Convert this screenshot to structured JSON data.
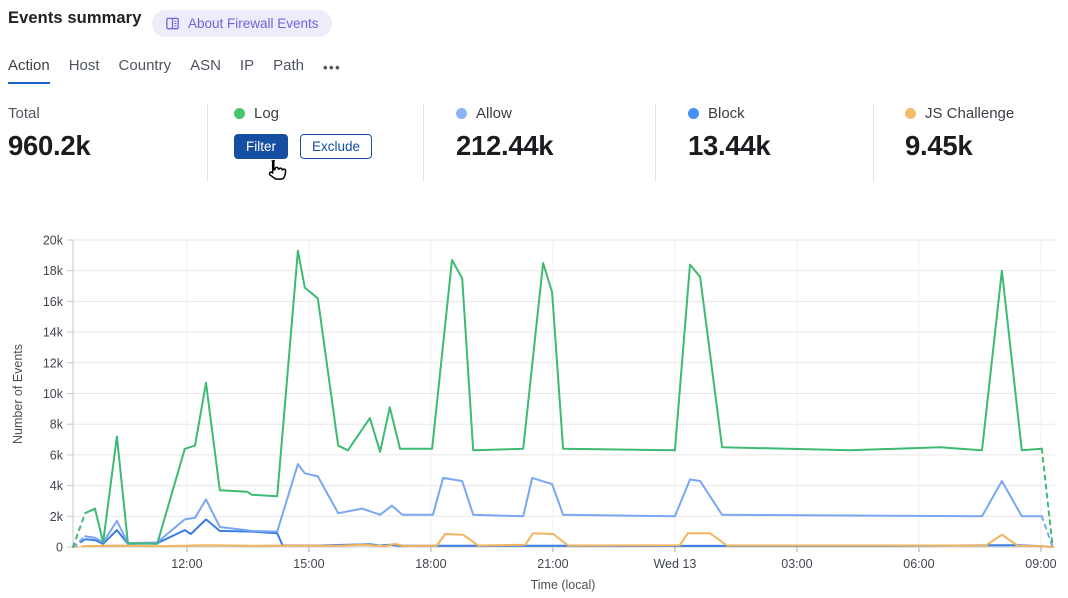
{
  "header": {
    "title": "Events summary",
    "badge": {
      "label": "About Firewall Events",
      "color": "#7064d8",
      "bg": "#edecfa"
    }
  },
  "tabs": {
    "items": [
      {
        "label": "Action",
        "active": true
      },
      {
        "label": "Host"
      },
      {
        "label": "Country"
      },
      {
        "label": "ASN"
      },
      {
        "label": "IP"
      },
      {
        "label": "Path"
      }
    ],
    "more": "•••"
  },
  "stats": {
    "total": {
      "label": "Total",
      "value": "960.2k"
    },
    "log": {
      "label": "Log",
      "dot_color": "#46c56e",
      "filter_label": "Filter",
      "exclude_label": "Exclude"
    },
    "allow": {
      "label": "Allow",
      "value": "212.44k",
      "dot_color": "#8bb4f7"
    },
    "block": {
      "label": "Block",
      "value": "13.44k",
      "dot_color": "#4a90f4"
    },
    "js_challenge": {
      "label": "JS Challenge",
      "value": "9.45k",
      "dot_color": "#f5bc6c"
    }
  },
  "accent_colors": {
    "button_blue": "#164fa2",
    "active_tab_underline": "#1d5fc2"
  },
  "chart_data": {
    "type": "line",
    "title": "",
    "xlabel": "Time (local)",
    "ylabel": "Number of Events",
    "ylim_k": [
      0,
      20
    ],
    "grid": true,
    "x_unit": "hours from chart start (~09:10 local), 15-min sampling",
    "y_ticks": [
      {
        "v": 0,
        "label": "0"
      },
      {
        "v": 2,
        "label": "2k"
      },
      {
        "v": 4,
        "label": "4k"
      },
      {
        "v": 6,
        "label": "6k"
      },
      {
        "v": 8,
        "label": "8k"
      },
      {
        "v": 10,
        "label": "10k"
      },
      {
        "v": 12,
        "label": "12k"
      },
      {
        "v": 14,
        "label": "14k"
      },
      {
        "v": 16,
        "label": "16k"
      },
      {
        "v": 18,
        "label": "18k"
      },
      {
        "v": 20,
        "label": "20k"
      }
    ],
    "x_ticks": [
      {
        "t": 2.8,
        "label": "12:00"
      },
      {
        "t": 5.8,
        "label": "15:00"
      },
      {
        "t": 8.8,
        "label": "18:00"
      },
      {
        "t": 11.8,
        "label": "21:00"
      },
      {
        "t": 14.8,
        "label": "Wed 13"
      },
      {
        "t": 17.8,
        "label": "03:00"
      },
      {
        "t": 20.8,
        "label": "06:00"
      },
      {
        "t": 23.8,
        "label": "09:00"
      }
    ],
    "series": [
      {
        "id": "block",
        "name": "Block",
        "color": "#3b7de4",
        "dash_start": true,
        "dash_end": false,
        "points_k": [
          [
            0,
            0
          ],
          [
            0.3,
            0.5
          ],
          [
            0.54,
            0.45
          ],
          [
            0.74,
            0.2
          ],
          [
            1.08,
            1.1
          ],
          [
            1.35,
            0.2
          ],
          [
            2.07,
            0.25
          ],
          [
            2.75,
            1.1
          ],
          [
            2.9,
            0.85
          ],
          [
            3.27,
            1.8
          ],
          [
            3.61,
            1.05
          ],
          [
            4.4,
            1.0
          ],
          [
            5.02,
            0.9
          ],
          [
            5.15,
            0.12
          ],
          [
            6.0,
            0.1
          ],
          [
            7.3,
            0.18
          ],
          [
            7.55,
            0.1
          ],
          [
            7.79,
            0.15
          ],
          [
            8.04,
            0.08
          ],
          [
            12.0,
            0.08
          ],
          [
            16.0,
            0.07
          ],
          [
            20.0,
            0.07
          ],
          [
            22.6,
            0.12
          ],
          [
            23.3,
            0.12
          ],
          [
            23.82,
            0.05
          ],
          [
            24.09,
            0
          ]
        ]
      },
      {
        "id": "js-challenge",
        "name": "JS Challenge",
        "color": "#f2b45f",
        "dash_start": true,
        "dash_end": false,
        "points_k": [
          [
            0,
            0
          ],
          [
            0.3,
            0.06
          ],
          [
            1.08,
            0.1
          ],
          [
            2.07,
            0.05
          ],
          [
            3.27,
            0.12
          ],
          [
            4.4,
            0.08
          ],
          [
            5.53,
            0.1
          ],
          [
            6.52,
            0.08
          ],
          [
            7.13,
            0.15
          ],
          [
            7.67,
            0.06
          ],
          [
            7.91,
            0.2
          ],
          [
            8.16,
            0.06
          ],
          [
            8.95,
            0.1
          ],
          [
            9.15,
            0.85
          ],
          [
            9.59,
            0.8
          ],
          [
            9.96,
            0.1
          ],
          [
            11.12,
            0.15
          ],
          [
            11.31,
            0.9
          ],
          [
            11.81,
            0.85
          ],
          [
            12.17,
            0.1
          ],
          [
            14.92,
            0.12
          ],
          [
            15.12,
            0.9
          ],
          [
            15.66,
            0.9
          ],
          [
            16.08,
            0.1
          ],
          [
            22.45,
            0.1
          ],
          [
            22.84,
            0.8
          ],
          [
            23.23,
            0.08
          ],
          [
            23.82,
            0.05
          ],
          [
            24.09,
            0
          ]
        ]
      },
      {
        "id": "allow",
        "name": "Allow",
        "color": "#7aa7f2",
        "dash_start": true,
        "dash_end": true,
        "points_k": [
          [
            0,
            0
          ],
          [
            0.3,
            0.7
          ],
          [
            0.54,
            0.6
          ],
          [
            0.74,
            0.3
          ],
          [
            1.08,
            1.7
          ],
          [
            1.35,
            0.25
          ],
          [
            2.07,
            0.3
          ],
          [
            2.75,
            1.8
          ],
          [
            3.0,
            1.9
          ],
          [
            3.27,
            3.1
          ],
          [
            3.61,
            1.3
          ],
          [
            4.4,
            1.05
          ],
          [
            5.02,
            1.0
          ],
          [
            5.53,
            5.4
          ],
          [
            5.7,
            4.8
          ],
          [
            6.02,
            4.6
          ],
          [
            6.52,
            2.2
          ],
          [
            7.11,
            2.5
          ],
          [
            7.55,
            2.1
          ],
          [
            7.84,
            2.7
          ],
          [
            8.1,
            2.1
          ],
          [
            8.85,
            2.1
          ],
          [
            9.1,
            4.5
          ],
          [
            9.57,
            4.3
          ],
          [
            9.84,
            2.1
          ],
          [
            11.07,
            2.0
          ],
          [
            11.29,
            4.5
          ],
          [
            11.78,
            4.1
          ],
          [
            12.05,
            2.1
          ],
          [
            14.8,
            2.0
          ],
          [
            15.17,
            4.4
          ],
          [
            15.42,
            4.3
          ],
          [
            15.96,
            2.1
          ],
          [
            22.35,
            2.0
          ],
          [
            22.84,
            4.3
          ],
          [
            23.33,
            2.0
          ],
          [
            23.82,
            2.0
          ],
          [
            24.09,
            0
          ]
        ]
      },
      {
        "id": "log",
        "name": "Log",
        "color": "#3dba74",
        "dash_start": true,
        "dash_end": true,
        "points_k": [
          [
            0,
            0
          ],
          [
            0.3,
            2.2
          ],
          [
            0.54,
            2.5
          ],
          [
            0.74,
            0.3
          ],
          [
            1.08,
            7.2
          ],
          [
            1.35,
            0.25
          ],
          [
            2.07,
            0.2
          ],
          [
            2.75,
            6.4
          ],
          [
            3.0,
            6.6
          ],
          [
            3.27,
            10.7
          ],
          [
            3.61,
            3.7
          ],
          [
            4.28,
            3.6
          ],
          [
            4.4,
            3.4
          ],
          [
            5.02,
            3.3
          ],
          [
            5.53,
            19.3
          ],
          [
            5.7,
            16.9
          ],
          [
            6.02,
            16.2
          ],
          [
            6.52,
            6.6
          ],
          [
            6.76,
            6.3
          ],
          [
            7.3,
            8.4
          ],
          [
            7.55,
            6.2
          ],
          [
            7.79,
            9.1
          ],
          [
            8.04,
            6.4
          ],
          [
            8.83,
            6.4
          ],
          [
            9.32,
            18.7
          ],
          [
            9.57,
            17.5
          ],
          [
            9.84,
            6.3
          ],
          [
            11.07,
            6.4
          ],
          [
            11.56,
            18.5
          ],
          [
            11.78,
            16.6
          ],
          [
            12.05,
            6.4
          ],
          [
            14.8,
            6.3
          ],
          [
            15.17,
            18.4
          ],
          [
            15.42,
            17.6
          ],
          [
            15.96,
            6.5
          ],
          [
            19.1,
            6.3
          ],
          [
            21.32,
            6.5
          ],
          [
            21.81,
            6.4
          ],
          [
            22.35,
            6.3
          ],
          [
            22.84,
            18.0
          ],
          [
            23.33,
            6.3
          ],
          [
            23.82,
            6.4
          ],
          [
            24.09,
            0
          ]
        ]
      }
    ],
    "legend_position": "top (stat cards act as legend)"
  }
}
